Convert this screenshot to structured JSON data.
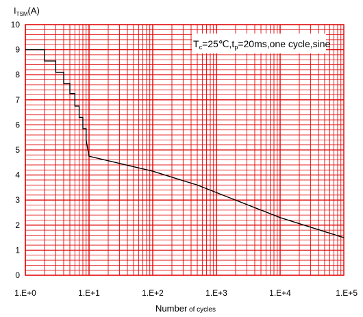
{
  "chart_data": {
    "type": "line",
    "x_scale": "log",
    "xlim": [
      1,
      100000
    ],
    "ylim": [
      0,
      10
    ],
    "grid": true,
    "colors": {
      "grid": "#e00000",
      "frame": "#e00000",
      "line": "#000000"
    },
    "ylabel": {
      "main": "I",
      "sub": "TSM",
      "unit": "(A)"
    },
    "xlabel": {
      "main": "Number",
      "small": " of cycles"
    },
    "annotation": "T_c=25℃,t_p=20ms,one cycle,sine",
    "annotation_placement": "top-right",
    "x_tick_labels": [
      "1.E+0",
      "1.E+1",
      "1.E+2",
      "1.E+3",
      "1.E+4",
      "1.E+5"
    ],
    "y_tick_labels": [
      "0",
      "1",
      "2",
      "3",
      "4",
      "5",
      "6",
      "7",
      "8",
      "9",
      "10"
    ],
    "series": [
      {
        "x": [
          1,
          2,
          2,
          3,
          3,
          4,
          4,
          5,
          5,
          6,
          6,
          7,
          7,
          8,
          8,
          9,
          9,
          10,
          100,
          500,
          1000,
          10000,
          100000
        ],
        "y": [
          9.0,
          9.0,
          8.55,
          8.55,
          8.1,
          8.1,
          7.65,
          7.65,
          7.25,
          7.25,
          6.75,
          6.75,
          6.3,
          6.3,
          5.85,
          5.85,
          5.4,
          4.75,
          4.15,
          3.6,
          3.3,
          2.3,
          1.5
        ]
      }
    ]
  }
}
